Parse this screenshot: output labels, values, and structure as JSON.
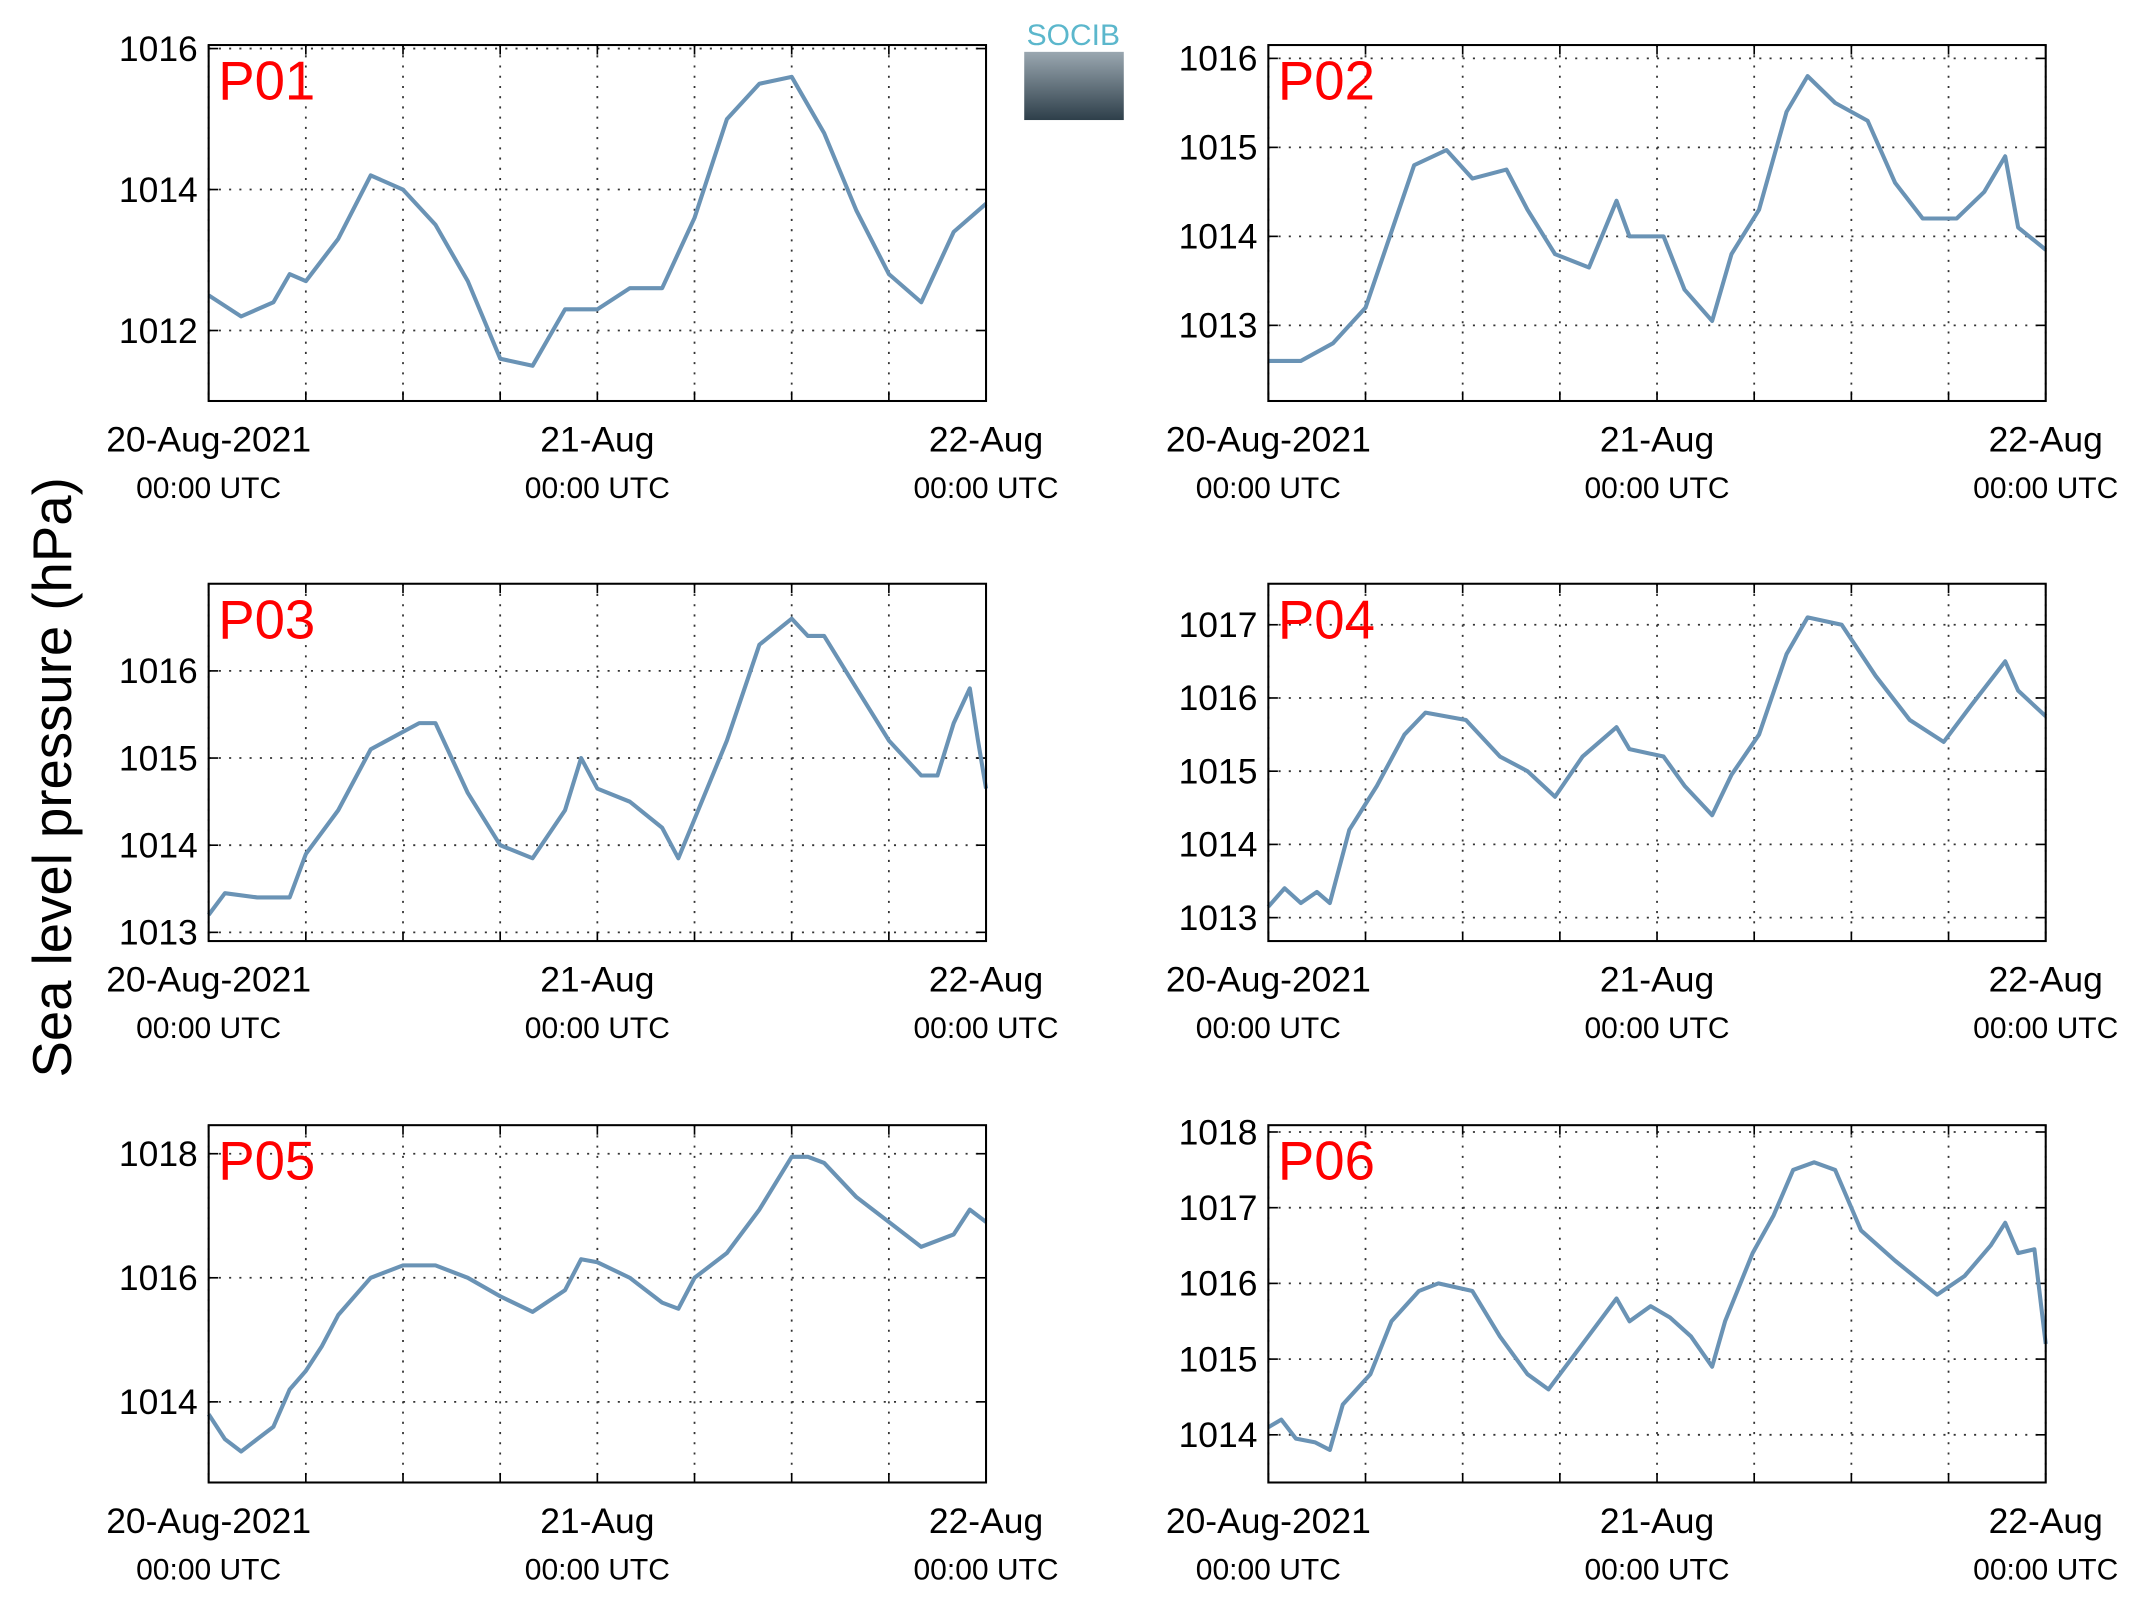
{
  "ylabel": "Sea level pressure (hPa)",
  "logo": "SOCIB",
  "chart_data": [
    {
      "type": "line",
      "title": "P01",
      "color": "#6a93b5",
      "xlim": [
        0,
        48
      ],
      "ylim": [
        1011,
        1016.05
      ],
      "yticks": [
        1012,
        1014,
        1016
      ],
      "grid": true,
      "xticks": [
        {
          "value": 0,
          "label": "20-Aug-2021\n00:00 UTC"
        },
        {
          "value": 24,
          "label": "21-Aug\n00:00 UTC"
        },
        {
          "value": 48,
          "label": "22-Aug\n00:00 UTC"
        }
      ],
      "xminor": [
        6,
        12,
        18,
        30,
        36,
        42
      ],
      "x": [
        0,
        2,
        4,
        5,
        6,
        8,
        10,
        12,
        14,
        16,
        18,
        20,
        22,
        24,
        26,
        28,
        30,
        32,
        34,
        36,
        38,
        40,
        42,
        44,
        46,
        48
      ],
      "values": [
        1012.5,
        1012.2,
        1012.4,
        1012.8,
        1012.7,
        1013.3,
        1014.2,
        1014.0,
        1013.5,
        1012.7,
        1011.6,
        1011.5,
        1012.3,
        1012.3,
        1012.6,
        1012.6,
        1013.6,
        1015.0,
        1015.5,
        1015.6,
        1014.8,
        1013.7,
        1012.8,
        1012.4,
        1013.4,
        1013.8
      ]
    },
    {
      "type": "line",
      "title": "P02",
      "color": "#6a93b5",
      "xlim": [
        0,
        48
      ],
      "ylim": [
        1012.15,
        1016.15
      ],
      "yticks": [
        1013,
        1014,
        1015,
        1016
      ],
      "grid": true,
      "xticks": [
        {
          "value": 0,
          "label": "20-Aug-2021\n00:00 UTC"
        },
        {
          "value": 24,
          "label": "21-Aug\n00:00 UTC"
        },
        {
          "value": 48,
          "label": "22-Aug\n00:00 UTC"
        }
      ],
      "xminor": [
        6,
        12,
        18,
        30,
        36,
        42
      ],
      "x": [
        0,
        2,
        4,
        6,
        7.5,
        9,
        11,
        12.6,
        14.7,
        16,
        17.7,
        19.8,
        21.5,
        22.3,
        24.4,
        25.7,
        27.4,
        28.6,
        30.3,
        32,
        33.3,
        35,
        37,
        38.7,
        40.4,
        42.5,
        44.2,
        45.5,
        46.3,
        48
      ],
      "values": [
        1012.6,
        1012.6,
        1012.8,
        1013.2,
        1014.0,
        1014.8,
        1014.97,
        1014.65,
        1014.75,
        1014.3,
        1013.8,
        1013.65,
        1014.4,
        1014.0,
        1014.0,
        1013.4,
        1013.05,
        1013.8,
        1014.3,
        1015.4,
        1015.8,
        1015.5,
        1015.3,
        1014.6,
        1014.2,
        1014.2,
        1014.5,
        1014.9,
        1014.1,
        1013.85
      ]
    },
    {
      "type": "line",
      "title": "P03",
      "color": "#6a93b5",
      "xlim": [
        0,
        48
      ],
      "ylim": [
        1012.9,
        1017
      ],
      "yticks": [
        1013,
        1014,
        1015,
        1016
      ],
      "grid": true,
      "xticks": [
        {
          "value": 0,
          "label": "20-Aug-2021\n00:00 UTC"
        },
        {
          "value": 24,
          "label": "21-Aug\n00:00 UTC"
        },
        {
          "value": 48,
          "label": "22-Aug\n00:00 UTC"
        }
      ],
      "xminor": [
        6,
        12,
        18,
        30,
        36,
        42
      ],
      "x": [
        0,
        1,
        3,
        5,
        6,
        8,
        10,
        12,
        13,
        14,
        16,
        18,
        20,
        22,
        23,
        24,
        26,
        28,
        29,
        30,
        32,
        34,
        36,
        37,
        38,
        40,
        42,
        44,
        45,
        46,
        47,
        47.5,
        48
      ],
      "values": [
        1013.2,
        1013.45,
        1013.4,
        1013.4,
        1013.9,
        1014.4,
        1015.1,
        1015.3,
        1015.4,
        1015.4,
        1014.6,
        1014.0,
        1013.85,
        1014.4,
        1015.0,
        1014.65,
        1014.5,
        1014.2,
        1013.85,
        1014.3,
        1015.2,
        1016.3,
        1016.6,
        1016.4,
        1016.4,
        1015.8,
        1015.2,
        1014.8,
        1014.8,
        1015.4,
        1015.8,
        1015.2,
        1014.65
      ]
    },
    {
      "type": "line",
      "title": "P04",
      "color": "#6a93b5",
      "xlim": [
        0,
        48
      ],
      "ylim": [
        1012.68,
        1017.56
      ],
      "yticks": [
        1013,
        1014,
        1015,
        1016,
        1017
      ],
      "grid": true,
      "xticks": [
        {
          "value": 0,
          "label": "20-Aug-2021\n00:00 UTC"
        },
        {
          "value": 24,
          "label": "21-Aug\n00:00 UTC"
        },
        {
          "value": 48,
          "label": "22-Aug\n00:00 UTC"
        }
      ],
      "xminor": [
        6,
        12,
        18,
        30,
        36,
        42
      ],
      "x": [
        0,
        1,
        2,
        3,
        3.8,
        5,
        6.7,
        8.4,
        9.7,
        12.2,
        14.3,
        16,
        17.7,
        19.4,
        21.5,
        22.3,
        24.4,
        25.7,
        27.4,
        28.6,
        30.3,
        32,
        33.3,
        35.4,
        37.5,
        39.6,
        41.7,
        43.4,
        45.5,
        46.3,
        48
      ],
      "values": [
        1013.15,
        1013.4,
        1013.2,
        1013.35,
        1013.2,
        1014.2,
        1014.8,
        1015.5,
        1015.8,
        1015.7,
        1015.2,
        1015.0,
        1014.65,
        1015.2,
        1015.6,
        1015.3,
        1015.2,
        1014.8,
        1014.4,
        1014.95,
        1015.5,
        1016.6,
        1017.1,
        1017.0,
        1016.3,
        1015.7,
        1015.4,
        1015.9,
        1016.5,
        1016.1,
        1015.75
      ]
    },
    {
      "type": "line",
      "title": "P05",
      "color": "#6a93b5",
      "xlim": [
        0,
        48
      ],
      "ylim": [
        1012.7,
        1018.46
      ],
      "yticks": [
        1014,
        1016,
        1018
      ],
      "grid": true,
      "xticks": [
        {
          "value": 0,
          "label": "20-Aug-2021\n00:00 UTC"
        },
        {
          "value": 24,
          "label": "21-Aug\n00:00 UTC"
        },
        {
          "value": 48,
          "label": "22-Aug\n00:00 UTC"
        }
      ],
      "xminor": [
        6,
        12,
        18,
        30,
        36,
        42
      ],
      "x": [
        0,
        1,
        2,
        3,
        4,
        5,
        6,
        7,
        8,
        10,
        12,
        14,
        16,
        18,
        20,
        22,
        23,
        24,
        26,
        28,
        29,
        30,
        32,
        34,
        36,
        37,
        38,
        40,
        42,
        44,
        46,
        47,
        48
      ],
      "values": [
        1013.8,
        1013.4,
        1013.2,
        1013.4,
        1013.6,
        1014.2,
        1014.5,
        1014.9,
        1015.4,
        1016.0,
        1016.2,
        1016.2,
        1016.0,
        1015.7,
        1015.45,
        1015.8,
        1016.3,
        1016.25,
        1016.0,
        1015.6,
        1015.5,
        1016.0,
        1016.4,
        1017.1,
        1017.95,
        1017.95,
        1017.85,
        1017.3,
        1016.9,
        1016.5,
        1016.7,
        1017.1,
        1016.9
      ]
    },
    {
      "type": "line",
      "title": "P06",
      "color": "#6a93b5",
      "xlim": [
        0,
        48
      ],
      "ylim": [
        1013.37,
        1018.09
      ],
      "yticks": [
        1014,
        1015,
        1016,
        1017,
        1018
      ],
      "grid": true,
      "xticks": [
        {
          "value": 0,
          "label": "20-Aug-2021\n00:00 UTC"
        },
        {
          "value": 24,
          "label": "21-Aug\n00:00 UTC"
        },
        {
          "value": 48,
          "label": "22-Aug\n00:00 UTC"
        }
      ],
      "xminor": [
        6,
        12,
        18,
        30,
        36,
        42
      ],
      "x": [
        0,
        0.8,
        1.7,
        2.9,
        3.8,
        4.6,
        6.3,
        7.6,
        9.3,
        10.5,
        12.6,
        14.3,
        16,
        17.3,
        19.4,
        21.5,
        22.3,
        23.6,
        24.8,
        26.1,
        27.4,
        28.2,
        29.9,
        31.2,
        32.4,
        33.7,
        35,
        36.6,
        38.7,
        41.3,
        43,
        44.6,
        45.5,
        46.3,
        47.3,
        48
      ],
      "values": [
        1014.1,
        1014.2,
        1013.95,
        1013.9,
        1013.8,
        1014.4,
        1014.8,
        1015.5,
        1015.9,
        1016.0,
        1015.9,
        1015.3,
        1014.8,
        1014.6,
        1015.2,
        1015.8,
        1015.5,
        1015.7,
        1015.55,
        1015.3,
        1014.9,
        1015.5,
        1016.4,
        1016.9,
        1017.5,
        1017.6,
        1017.5,
        1016.7,
        1016.3,
        1015.85,
        1016.1,
        1016.5,
        1016.8,
        1016.4,
        1016.45,
        1015.2
      ]
    }
  ]
}
